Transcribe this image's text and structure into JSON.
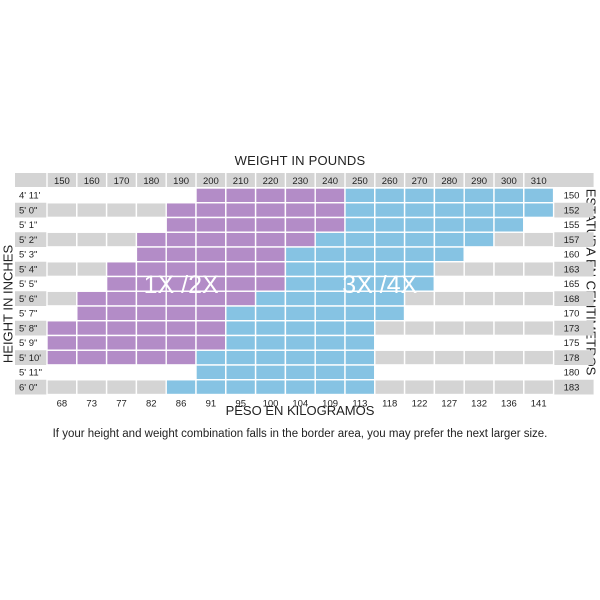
{
  "chart_data": {
    "type": "heatmap",
    "title": "WEIGHT IN POUNDS",
    "xlabel": "PESO EN KILOGRAMOS",
    "ylabel_left": "HEIGHT IN INCHES",
    "ylabel_right": "ESTATURA EN CENTIMETROS",
    "x_pounds": [
      "150",
      "160",
      "170",
      "180",
      "190",
      "200",
      "210",
      "220",
      "230",
      "240",
      "250",
      "260",
      "270",
      "280",
      "290",
      "300",
      "310"
    ],
    "x_kilograms": [
      "68",
      "73",
      "77",
      "82",
      "86",
      "91",
      "95",
      "100",
      "104",
      "109",
      "113",
      "118",
      "122",
      "127",
      "132",
      "136",
      "141"
    ],
    "y_heights": [
      "4' 11'",
      "5' 0\"",
      "5' 1\"",
      "5' 2\"",
      "5' 3\"",
      "5' 4\"",
      "5' 5\"",
      "5' 6\"",
      "5' 7\"",
      "5' 8\"",
      "5' 9\"",
      "5' 10'",
      "5' 11\"",
      "6' 0\""
    ],
    "y_centimeters": [
      "150",
      "152",
      "155",
      "157",
      "160",
      "163",
      "165",
      "168",
      "170",
      "173",
      "175",
      "178",
      "180",
      "183"
    ],
    "zones": [
      {
        "name": "1X /2X",
        "color": "#b38cc7"
      },
      {
        "name": "3X /4X",
        "color": "#86c3e3"
      }
    ],
    "grid": [
      [
        0,
        0,
        0,
        0,
        0,
        1,
        1,
        1,
        1,
        1,
        2,
        2,
        2,
        2,
        2,
        2,
        2
      ],
      [
        0,
        0,
        0,
        0,
        1,
        1,
        1,
        1,
        1,
        1,
        2,
        2,
        2,
        2,
        2,
        2,
        2
      ],
      [
        0,
        0,
        0,
        0,
        1,
        1,
        1,
        1,
        1,
        1,
        2,
        2,
        2,
        2,
        2,
        2,
        0
      ],
      [
        0,
        0,
        0,
        1,
        1,
        1,
        1,
        1,
        1,
        2,
        2,
        2,
        2,
        2,
        2,
        0,
        0
      ],
      [
        0,
        0,
        0,
        1,
        1,
        1,
        1,
        1,
        2,
        2,
        2,
        2,
        2,
        2,
        0,
        0,
        0
      ],
      [
        0,
        0,
        1,
        1,
        1,
        1,
        1,
        1,
        2,
        2,
        2,
        2,
        2,
        0,
        0,
        0,
        0
      ],
      [
        0,
        0,
        1,
        1,
        1,
        1,
        1,
        1,
        2,
        2,
        2,
        2,
        2,
        0,
        0,
        0,
        0
      ],
      [
        0,
        1,
        1,
        1,
        1,
        1,
        1,
        2,
        2,
        2,
        2,
        2,
        0,
        0,
        0,
        0,
        0
      ],
      [
        0,
        1,
        1,
        1,
        1,
        1,
        2,
        2,
        2,
        2,
        2,
        2,
        0,
        0,
        0,
        0,
        0
      ],
      [
        1,
        1,
        1,
        1,
        1,
        1,
        2,
        2,
        2,
        2,
        2,
        0,
        0,
        0,
        0,
        0,
        0
      ],
      [
        1,
        1,
        1,
        1,
        1,
        1,
        2,
        2,
        2,
        2,
        2,
        0,
        0,
        0,
        0,
        0,
        0
      ],
      [
        1,
        1,
        1,
        1,
        1,
        2,
        2,
        2,
        2,
        2,
        2,
        0,
        0,
        0,
        0,
        0,
        0
      ],
      [
        0,
        0,
        0,
        0,
        0,
        2,
        2,
        2,
        2,
        2,
        2,
        0,
        0,
        0,
        0,
        0,
        0
      ],
      [
        0,
        0,
        0,
        0,
        2,
        2,
        2,
        2,
        2,
        2,
        2,
        0,
        0,
        0,
        0,
        0,
        0
      ]
    ],
    "empty_color": "#ffffff",
    "stripe_color": "#d4d4d4",
    "label_band_color": "#d4d4d4",
    "footnote": "If your height and weight combination falls in the border area, you may prefer the next larger size."
  }
}
